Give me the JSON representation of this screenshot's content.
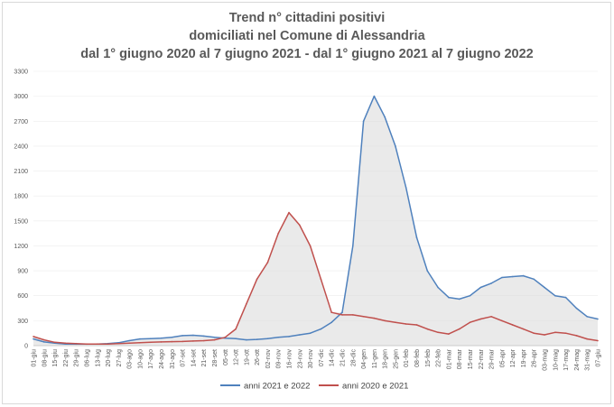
{
  "colors": {
    "series_2021_2022": "#4f81bd",
    "series_2020_2021": "#c0504d",
    "fill": "#d9d9d9",
    "grid": "#ececec"
  },
  "chart_data": {
    "type": "line",
    "title": [
      "Trend n° cittadini positivi",
      "domiciliati nel Comune di Alessandria",
      "dal 1° giugno 2020 al 7 giugno 2021 - dal 1° giugno 2021 al 7 giugno 2022"
    ],
    "ylim": [
      0,
      3300
    ],
    "yticks": [
      "0",
      "300",
      "600",
      "900",
      "1200",
      "1500",
      "1800",
      "2100",
      "2400",
      "2700",
      "3000",
      "3300"
    ],
    "grid": true,
    "legend_position": "bottom",
    "x": [
      "01-giu",
      "08-giu",
      "15-giu",
      "22-giu",
      "29-giu",
      "06-lug",
      "13-lug",
      "20-lug",
      "27-lug",
      "03-ago",
      "10-ago",
      "17-ago",
      "24-ago",
      "31-ago",
      "07-set",
      "14-set",
      "21-set",
      "28-set",
      "05-ott",
      "12-ott",
      "19-ott",
      "26-ott",
      "02-nov",
      "09-nov",
      "16-nov",
      "23-nov",
      "30-nov",
      "07-dic",
      "14-dic",
      "21-dic",
      "28-dic",
      "04-gen",
      "11-gen",
      "18-gen",
      "25-gen",
      "01-feb",
      "08-feb",
      "15-feb",
      "22-feb",
      "01-mar",
      "08-mar",
      "15-mar",
      "22-mar",
      "29-mar",
      "05-apr",
      "12-apr",
      "19-apr",
      "26-apr",
      "03-mag",
      "10-mag",
      "17-mag",
      "24-mag",
      "31-mag",
      "07-giu"
    ],
    "series": [
      {
        "name": "anni 2021 e 2022",
        "color": "#4f81bd",
        "values": [
          80,
          45,
          30,
          20,
          18,
          18,
          20,
          25,
          35,
          60,
          80,
          85,
          90,
          100,
          120,
          125,
          115,
          100,
          90,
          85,
          70,
          75,
          85,
          100,
          110,
          130,
          150,
          200,
          280,
          400,
          1200,
          2700,
          3000,
          2750,
          2400,
          1900,
          1300,
          900,
          700,
          580,
          560,
          600,
          700,
          750,
          820,
          830,
          840,
          800,
          700,
          600,
          580,
          450,
          350,
          320
        ]
      },
      {
        "name": "anni 2020 e 2021",
        "color": "#c0504d",
        "values": [
          110,
          70,
          40,
          30,
          25,
          20,
          20,
          20,
          25,
          30,
          35,
          40,
          45,
          48,
          50,
          55,
          60,
          70,
          100,
          200,
          500,
          800,
          1000,
          1350,
          1600,
          1450,
          1200,
          800,
          400,
          370,
          370,
          350,
          330,
          300,
          280,
          260,
          250,
          200,
          160,
          140,
          200,
          280,
          320,
          350,
          300,
          250,
          200,
          150,
          130,
          160,
          150,
          120,
          80,
          60
        ]
      }
    ]
  }
}
